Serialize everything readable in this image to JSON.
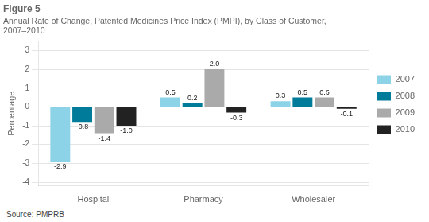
{
  "chart_data": {
    "type": "bar",
    "title": "Figure 5",
    "subtitle": "Annual Rate of Change, Patented Medicines Price Index (PMPI), by Class of Customer,\n2007–2010",
    "ylabel": "Percentage",
    "annotations": [
      "Source: PMPRB"
    ],
    "categories": [
      "Hospital",
      "Pharmacy",
      "Wholesaler"
    ],
    "series": [
      {
        "name": "2007",
        "color": "#8dd3e8",
        "values": [
          -2.9,
          0.5,
          0.3
        ],
        "value_labels": [
          "-2.9",
          "0.5",
          "0.3"
        ]
      },
      {
        "name": "2008",
        "color": "#007b99",
        "values": [
          -0.8,
          0.2,
          0.5
        ],
        "value_labels": [
          "-0.8",
          "0.2",
          "0.5"
        ]
      },
      {
        "name": "2009",
        "color": "#aaaaaa",
        "values": [
          -1.4,
          2.0,
          0.5
        ],
        "value_labels": [
          "-1.4",
          "2.0",
          "0.5"
        ]
      },
      {
        "name": "2010",
        "color": "#222222",
        "values": [
          -1.0,
          -0.3,
          -0.1
        ],
        "value_labels": [
          "-1.0",
          "-0.3",
          "-0.1"
        ]
      }
    ],
    "ylim": [
      -4.2,
      3.5
    ],
    "yticks": [
      -4,
      -3,
      -2,
      -1,
      0,
      1,
      2,
      3
    ],
    "grid": true,
    "legend": "right",
    "data_labels": true
  }
}
